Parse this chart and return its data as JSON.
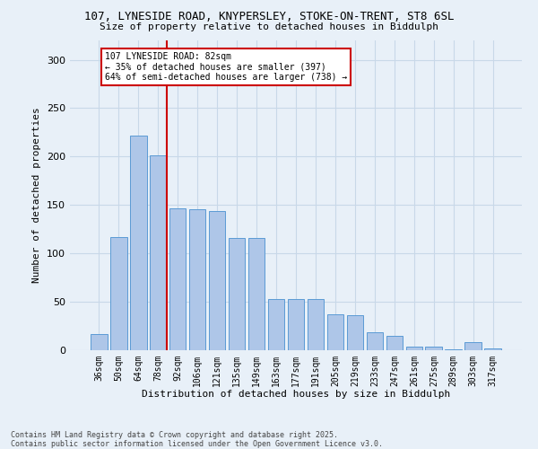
{
  "title_line1": "107, LYNESIDE ROAD, KNYPERSLEY, STOKE-ON-TRENT, ST8 6SL",
  "title_line2": "Size of property relative to detached houses in Biddulph",
  "xlabel": "Distribution of detached houses by size in Biddulph",
  "ylabel": "Number of detached properties",
  "categories": [
    "36sqm",
    "50sqm",
    "64sqm",
    "78sqm",
    "92sqm",
    "106sqm",
    "121sqm",
    "135sqm",
    "149sqm",
    "163sqm",
    "177sqm",
    "191sqm",
    "205sqm",
    "219sqm",
    "233sqm",
    "247sqm",
    "261sqm",
    "275sqm",
    "289sqm",
    "303sqm",
    "317sqm"
  ],
  "values": [
    17,
    117,
    222,
    201,
    147,
    146,
    144,
    116,
    116,
    53,
    53,
    53,
    37,
    36,
    19,
    15,
    4,
    4,
    1,
    8,
    2
  ],
  "bar_color": "#aec6e8",
  "bar_edge_color": "#5b9bd5",
  "marker_line_color": "#cc0000",
  "annotation_line1": "107 LYNESIDE ROAD: 82sqm",
  "annotation_line2": "← 35% of detached houses are smaller (397)",
  "annotation_line3": "64% of semi-detached houses are larger (738) →",
  "annotation_box_edge": "#cc0000",
  "ylim_max": 320,
  "yticks": [
    0,
    50,
    100,
    150,
    200,
    250,
    300
  ],
  "grid_color": "#c8d8e8",
  "bg_color": "#e8f0f8",
  "footer": "Contains HM Land Registry data © Crown copyright and database right 2025.\nContains public sector information licensed under the Open Government Licence v3.0."
}
